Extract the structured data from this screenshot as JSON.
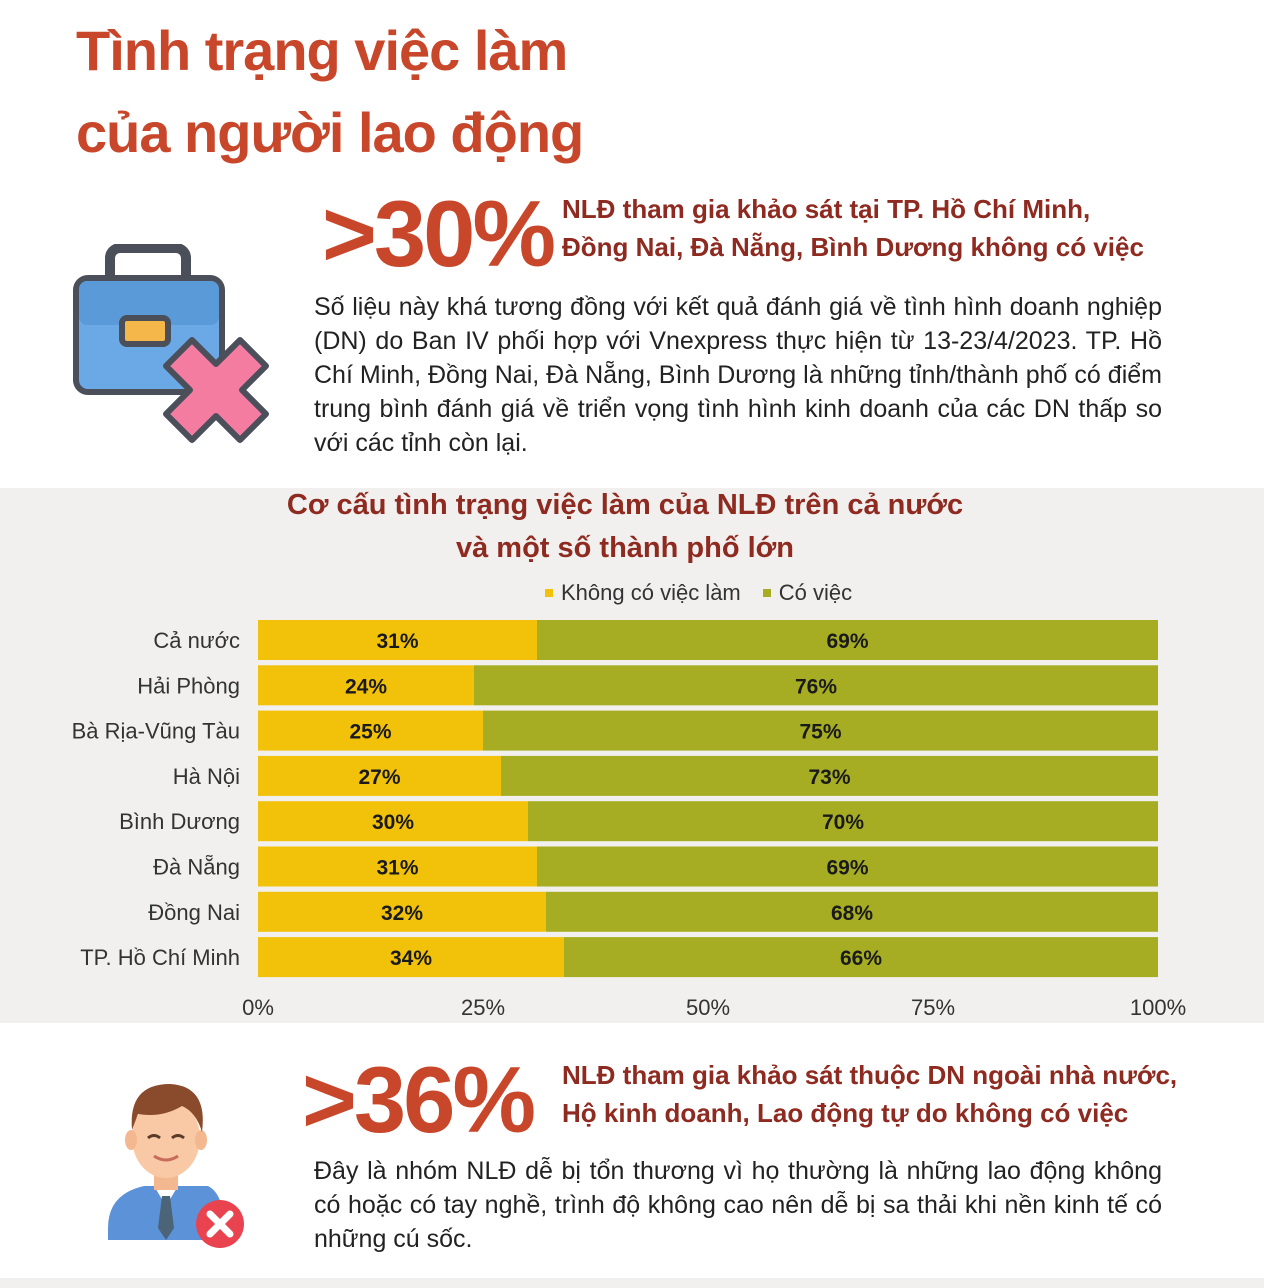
{
  "page": {
    "title_line1": "Tình trạng việc làm",
    "title_line2": "của người lao động"
  },
  "stat1": {
    "number": ">30%",
    "headline_line1": "NLĐ tham gia khảo sát tại TP. Hồ Chí Minh,",
    "headline_line2": "Đồng Nai, Đà Nẵng, Bình Dương không có việc",
    "body": "Số liệu này khá tương đồng với kết quả đánh giá về tình hình doanh nghiệp (DN) do Ban IV phối hợp với Vnexpress thực hiện từ 13-23/4/2023. TP. Hồ Chí Minh, Đồng Nai, Đà Nẵng, Bình Dương là những tỉnh/thành phố có điểm trung bình đánh giá về triển vọng tình hình kinh doanh của các DN thấp so với các tỉnh còn lại.",
    "icon": "briefcase-cross-icon"
  },
  "stat2": {
    "number": ">36%",
    "headline_line1": "NLĐ tham gia khảo sát thuộc DN ngoài nhà nước,",
    "headline_line2": "Hộ kinh doanh, Lao động tự do không có việc",
    "body": "Đây là nhóm NLĐ dễ bị tổn thương vì họ thường là những lao động không có hoặc có tay nghề, trình độ không cao nên dễ bị sa thải khi nền kinh tế có những cú sốc.",
    "icon": "worker-cross-icon"
  },
  "colors": {
    "accent": "#c8472b",
    "headline": "#8e2a20",
    "no_job": "#f2c20a",
    "has_job": "#a6ad23",
    "panel": "#f1f0ee"
  },
  "chart_data": {
    "type": "bar",
    "orientation": "horizontal",
    "stacked": true,
    "title_line1": "Cơ cấu tình trạng việc làm của NLĐ trên cả nước",
    "title_line2": "và một số thành phố lớn",
    "categories": [
      "Cả nước",
      "Hải Phòng",
      "Bà Rịa-Vũng Tàu",
      "Hà Nội",
      "Bình Dương",
      "Đà Nẵng",
      "Đồng Nai",
      "TP. Hồ Chí Minh"
    ],
    "series": [
      {
        "name": "Không có việc làm",
        "values": [
          31,
          24,
          25,
          27,
          30,
          31,
          32,
          34
        ],
        "labels": [
          "31%",
          "24%",
          "25%",
          "27%",
          "30%",
          "31%",
          "32%",
          "34%"
        ],
        "color": "#f2c20a"
      },
      {
        "name": "Có việc",
        "values": [
          69,
          76,
          75,
          73,
          70,
          69,
          68,
          66
        ],
        "labels": [
          "69%",
          "76%",
          "75%",
          "73%",
          "70%",
          "69%",
          "68%",
          "66%"
        ],
        "color": "#a6ad23"
      }
    ],
    "xlim": [
      0,
      100
    ],
    "xticks": [
      0,
      25,
      50,
      75,
      100
    ],
    "xtick_labels": [
      "0%",
      "25%",
      "50%",
      "75%",
      "100%"
    ],
    "legend_position": "top",
    "grid": false
  }
}
